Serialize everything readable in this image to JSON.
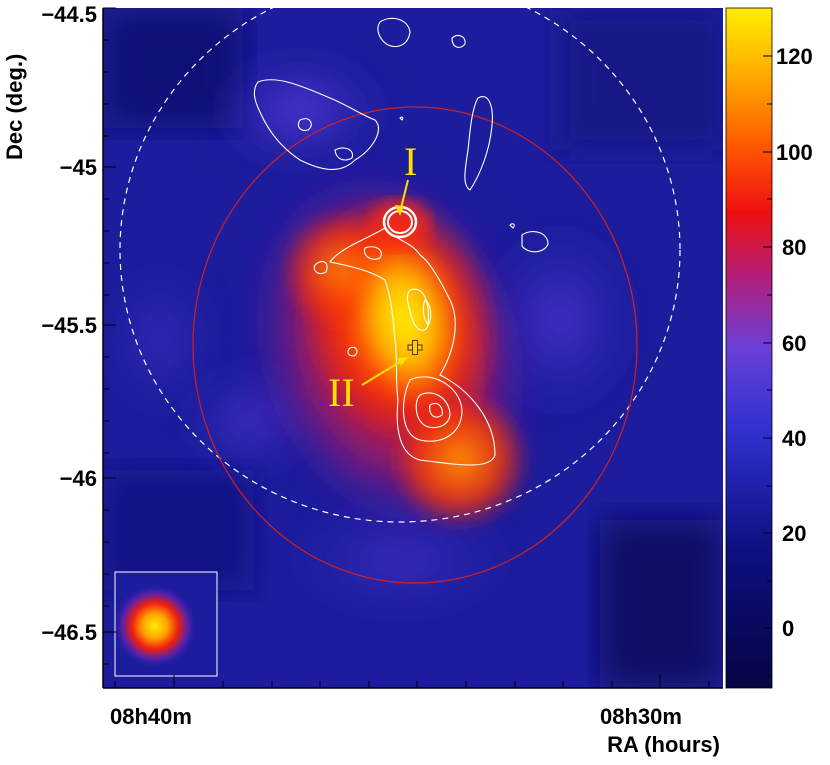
{
  "axes": {
    "xlabel": "RA (hours)",
    "ylabel": "Dec (deg.)",
    "x_ticks": [
      "08h40m",
      "08h30m"
    ],
    "y_ticks": [
      "−44.5",
      "−45",
      "−45.5",
      "−46",
      "−46.5"
    ]
  },
  "colorbar": {
    "ticks": [
      "120",
      "100",
      "80",
      "60",
      "40",
      "20",
      "0"
    ],
    "range": [
      -12,
      130
    ]
  },
  "annotations": {
    "source_1": "I",
    "source_2": "II"
  },
  "colors": {
    "background_map": "#1a1a9a",
    "high_emission": "#ffe800",
    "contours": "#ffffff",
    "outer_circle": "#cc2222",
    "label_arrow": "#ffe000"
  }
}
